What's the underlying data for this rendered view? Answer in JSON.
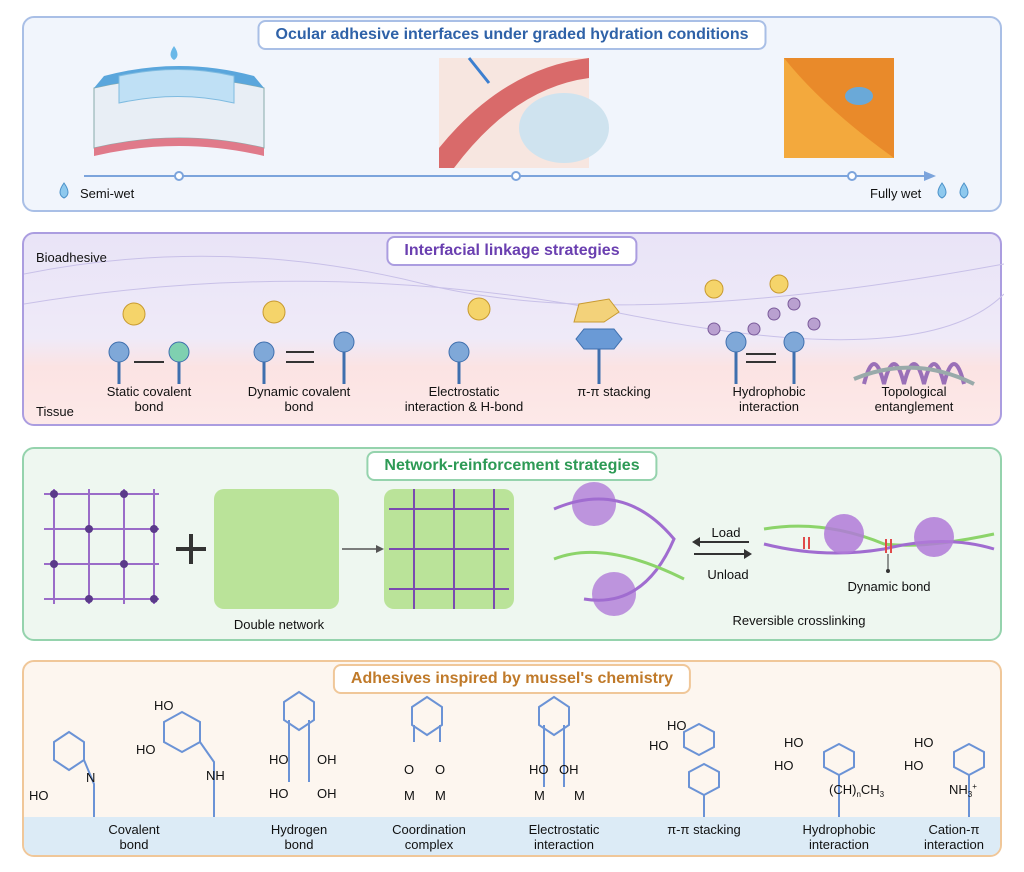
{
  "panel1": {
    "title": "Ocular adhesive interfaces under graded hydration conditions",
    "left_label": "Semi-wet",
    "right_label": "Fully wet"
  },
  "panel2": {
    "title": "Interfacial linkage strategies",
    "top_label": "Bioadhesive",
    "bottom_label": "Tissue",
    "items": [
      "Static covalent\nbond",
      "Dynamic covalent\nbond",
      "Electrostatic\ninteraction & H-bond",
      "π-π stacking",
      "Hydrophobic\ninteraction",
      "Topological\nentanglement"
    ]
  },
  "panel3": {
    "title": "Network-reinforcement strategies",
    "double_network": "Double network",
    "load": "Load",
    "unload": "Unload",
    "dynamic_bond": "Dynamic bond",
    "reversible": "Reversible crosslinking"
  },
  "panel4": {
    "title": "Adhesives inspired by mussel's chemistry",
    "items": [
      "Covalent\nbond",
      "Hydrogen\nbond",
      "Coordination\ncomplex",
      "Electrostatic\ninteraction",
      "π-π stacking",
      "Hydrophobic\ninteraction",
      "Cation-π\ninteraction"
    ],
    "chem": {
      "ho": "HO",
      "oh": "OH",
      "n": "N",
      "nh": "NH",
      "o": "O",
      "m": "M",
      "ch": "(CH)",
      "n_sub": "n",
      "ch3": "CH",
      "three": "3",
      "nh3": "NH",
      "plus": "+"
    }
  },
  "colors": {
    "blue": "#2f62a8",
    "purple": "#6a3fb0",
    "green": "#2d9a55",
    "orange": "#c07a2a",
    "bond": "#6b93d6"
  }
}
